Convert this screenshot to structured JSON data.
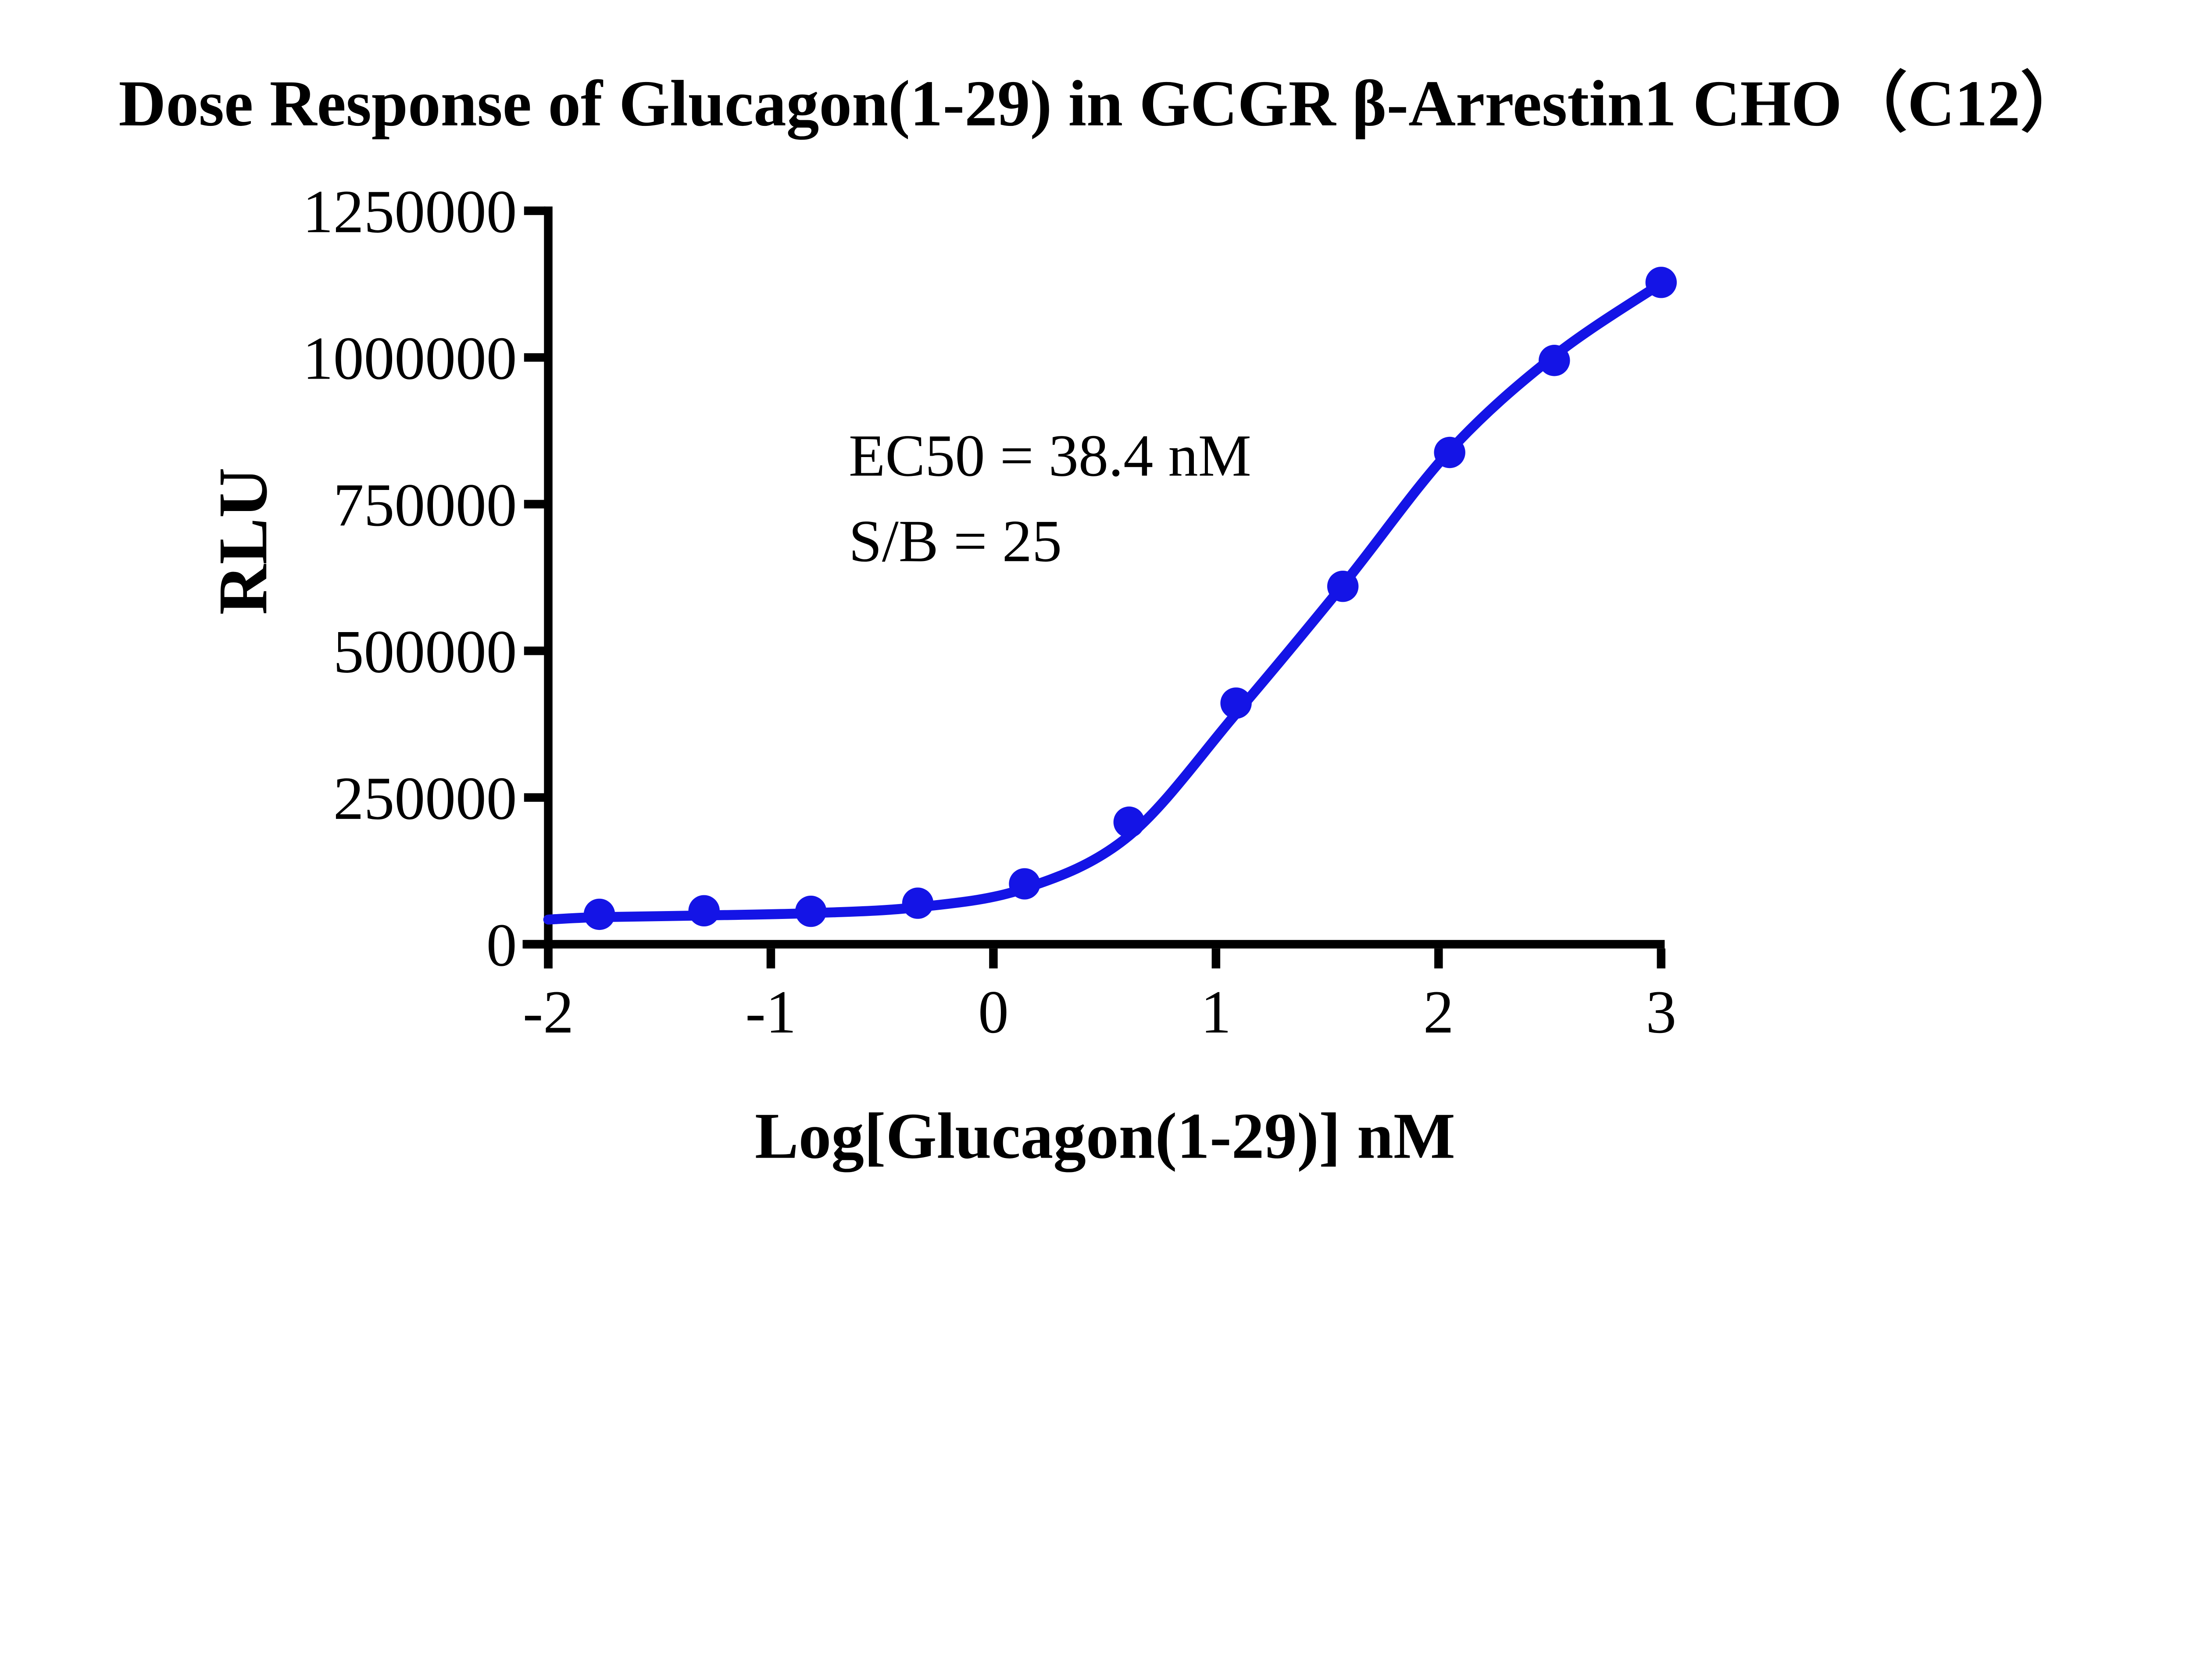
{
  "chart_data": {
    "type": "scatter",
    "title": "Dose Response of Glucagon(1-29) in GCGR β-Arrestin1 CHO（C12）",
    "xlabel": "Log[Glucagon(1-29)] nM",
    "ylabel": "RLU",
    "xlim": [
      -2,
      3
    ],
    "ylim": [
      0,
      1250000
    ],
    "x_ticks": [
      -2,
      -1,
      0,
      1,
      2,
      3
    ],
    "y_ticks": [
      0,
      250000,
      500000,
      750000,
      1000000,
      1250000
    ],
    "grid": false,
    "legend": false,
    "colors": {
      "series": "#1414e6",
      "axis": "#000000",
      "text": "#000000",
      "background": "#ffffff"
    },
    "series": [
      {
        "name": "Glucagon(1-29)",
        "marker": "circle",
        "x": [
          -1.77,
          -1.3,
          -0.82,
          -0.34,
          0.14,
          0.61,
          1.09,
          1.57,
          2.05,
          2.52,
          3.0
        ],
        "y": [
          51000,
          57000,
          56000,
          70000,
          103000,
          208000,
          411000,
          610000,
          838000,
          995000,
          1128000
        ]
      }
    ],
    "fit_curve": {
      "name": "sigmoidal dose-response fit",
      "x": [
        -2.0,
        -1.77,
        -1.3,
        -0.82,
        -0.34,
        0.14,
        0.61,
        1.09,
        1.57,
        2.05,
        2.52,
        3.0
      ],
      "y": [
        42000,
        46000,
        49000,
        53000,
        63000,
        95000,
        185000,
        393000,
        612000,
        841000,
        1003000,
        1126000
      ]
    },
    "annotations": [
      {
        "text": "EC50 = 38.4 nM"
      },
      {
        "text": "S/B = 25"
      }
    ],
    "results": {
      "EC50_nM": 38.4,
      "S_over_B": 25
    }
  }
}
